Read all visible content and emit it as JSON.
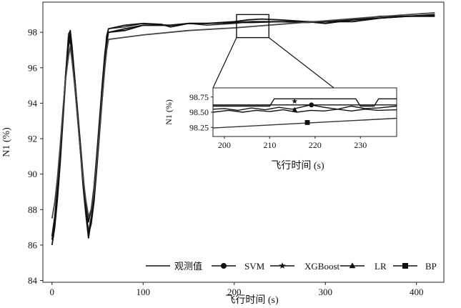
{
  "chart_data": [
    {
      "type": "line",
      "xlabel": "飞行时间 (s)",
      "ylabel": "N1 (%)",
      "xlim": [
        -10,
        430
      ],
      "ylim": [
        83.9,
        99.7
      ],
      "xticks": [
        0,
        100,
        200,
        300,
        400
      ],
      "yticks": [
        84,
        86,
        88,
        90,
        92,
        94,
        96,
        98
      ],
      "grid": false,
      "legend_position": "bottom",
      "series": [
        {
          "name": "观测值",
          "marker": "none",
          "color": "#222222",
          "points": [
            [
              0,
              86.0
            ],
            [
              3,
              87.2
            ],
            [
              6,
              88.8
            ],
            [
              9,
              90.8
            ],
            [
              12,
              93.2
            ],
            [
              15,
              95.8
            ],
            [
              18,
              97.9
            ],
            [
              20,
              98.1
            ],
            [
              22,
              96.8
            ],
            [
              25,
              95.2
            ],
            [
              28,
              93.4
            ],
            [
              31,
              91.6
            ],
            [
              34,
              89.8
            ],
            [
              37,
              88.2
            ],
            [
              40,
              86.8
            ],
            [
              43,
              87.6
            ],
            [
              46,
              88.8
            ],
            [
              49,
              90.6
            ],
            [
              52,
              92.6
            ],
            [
              55,
              94.6
            ],
            [
              58,
              96.6
            ],
            [
              60,
              97.6
            ],
            [
              62,
              98.2
            ],
            [
              80,
              98.3
            ],
            [
              100,
              98.5
            ],
            [
              130,
              98.4
            ],
            [
              150,
              98.5
            ],
            [
              170,
              98.4
            ],
            [
              200,
              98.5
            ],
            [
              220,
              98.6
            ],
            [
              250,
              98.6
            ],
            [
              280,
              98.6
            ],
            [
              300,
              98.6
            ],
            [
              330,
              98.6
            ],
            [
              360,
              98.8
            ],
            [
              390,
              98.9
            ],
            [
              420,
              99.0
            ]
          ]
        },
        {
          "name": "SVM",
          "marker": "circle",
          "color": "#111111",
          "points": [
            [
              0,
              86.3
            ],
            [
              3,
              87.4
            ],
            [
              6,
              89.0
            ],
            [
              9,
              91.0
            ],
            [
              12,
              93.4
            ],
            [
              15,
              95.6
            ],
            [
              18,
              97.2
            ],
            [
              20,
              97.9
            ],
            [
              22,
              97.0
            ],
            [
              25,
              95.4
            ],
            [
              28,
              93.6
            ],
            [
              31,
              91.8
            ],
            [
              34,
              90.0
            ],
            [
              37,
              88.4
            ],
            [
              40,
              87.3
            ],
            [
              43,
              88.0
            ],
            [
              46,
              89.2
            ],
            [
              49,
              91.0
            ],
            [
              52,
              93.0
            ],
            [
              55,
              95.0
            ],
            [
              58,
              96.8
            ],
            [
              60,
              97.6
            ],
            [
              62,
              98.0
            ],
            [
              80,
              98.2
            ],
            [
              100,
              98.4
            ],
            [
              130,
              98.4
            ],
            [
              150,
              98.5
            ],
            [
              170,
              98.5
            ],
            [
              200,
              98.55
            ],
            [
              220,
              98.6
            ],
            [
              250,
              98.6
            ],
            [
              280,
              98.55
            ],
            [
              300,
              98.6
            ],
            [
              330,
              98.7
            ],
            [
              360,
              98.8
            ],
            [
              390,
              98.9
            ],
            [
              420,
              98.9
            ]
          ]
        },
        {
          "name": "XGBoost",
          "marker": "star",
          "color": "#111111",
          "points": [
            [
              0,
              86.0
            ],
            [
              3,
              87.0
            ],
            [
              6,
              88.6
            ],
            [
              9,
              90.6
            ],
            [
              12,
              93.0
            ],
            [
              15,
              95.4
            ],
            [
              18,
              97.5
            ],
            [
              20,
              98.1
            ],
            [
              22,
              97.2
            ],
            [
              25,
              95.4
            ],
            [
              28,
              93.4
            ],
            [
              31,
              91.4
            ],
            [
              34,
              89.4
            ],
            [
              37,
              87.8
            ],
            [
              40,
              86.4
            ],
            [
              43,
              87.4
            ],
            [
              46,
              88.8
            ],
            [
              49,
              90.6
            ],
            [
              52,
              92.8
            ],
            [
              55,
              94.8
            ],
            [
              58,
              96.6
            ],
            [
              60,
              97.8
            ],
            [
              62,
              98.2
            ],
            [
              80,
              98.4
            ],
            [
              100,
              98.5
            ],
            [
              120,
              98.45
            ],
            [
              130,
              98.3
            ],
            [
              150,
              98.5
            ],
            [
              170,
              98.5
            ],
            [
              200,
              98.6
            ],
            [
              215,
              98.7
            ],
            [
              230,
              98.75
            ],
            [
              250,
              98.7
            ],
            [
              280,
              98.6
            ],
            [
              300,
              98.5
            ],
            [
              330,
              98.7
            ],
            [
              360,
              98.9
            ],
            [
              390,
              98.9
            ],
            [
              420,
              99.0
            ]
          ]
        },
        {
          "name": "LR",
          "marker": "triangle",
          "color": "#111111",
          "points": [
            [
              0,
              86.5
            ],
            [
              3,
              87.6
            ],
            [
              6,
              89.2
            ],
            [
              9,
              91.2
            ],
            [
              12,
              93.4
            ],
            [
              15,
              95.6
            ],
            [
              18,
              97.2
            ],
            [
              20,
              97.6
            ],
            [
              22,
              96.6
            ],
            [
              25,
              95.0
            ],
            [
              28,
              93.2
            ],
            [
              31,
              91.4
            ],
            [
              34,
              89.6
            ],
            [
              37,
              88.0
            ],
            [
              40,
              86.6
            ],
            [
              43,
              87.2
            ],
            [
              46,
              88.4
            ],
            [
              49,
              90.2
            ],
            [
              52,
              92.2
            ],
            [
              55,
              94.2
            ],
            [
              58,
              96.2
            ],
            [
              60,
              97.4
            ],
            [
              62,
              98.0
            ],
            [
              80,
              98.1
            ],
            [
              100,
              98.4
            ],
            [
              130,
              98.4
            ],
            [
              150,
              98.5
            ],
            [
              170,
              98.5
            ],
            [
              200,
              98.55
            ],
            [
              220,
              98.55
            ],
            [
              250,
              98.6
            ],
            [
              280,
              98.6
            ],
            [
              300,
              98.6
            ],
            [
              330,
              98.6
            ],
            [
              360,
              98.8
            ],
            [
              390,
              98.9
            ],
            [
              420,
              98.95
            ]
          ]
        },
        {
          "name": "BP",
          "marker": "square",
          "color": "#444444",
          "points": [
            [
              0,
              87.5
            ],
            [
              3,
              88.4
            ],
            [
              6,
              89.8
            ],
            [
              9,
              91.6
            ],
            [
              12,
              93.6
            ],
            [
              15,
              95.4
            ],
            [
              18,
              96.6
            ],
            [
              20,
              97.2
            ],
            [
              22,
              96.4
            ],
            [
              25,
              95.0
            ],
            [
              28,
              93.2
            ],
            [
              31,
              91.4
            ],
            [
              34,
              89.8
            ],
            [
              37,
              88.6
            ],
            [
              40,
              87.6
            ],
            [
              43,
              88.0
            ],
            [
              46,
              89.0
            ],
            [
              49,
              90.6
            ],
            [
              52,
              92.4
            ],
            [
              55,
              94.2
            ],
            [
              58,
              96.0
            ],
            [
              60,
              97.0
            ],
            [
              62,
              97.6
            ],
            [
              100,
              97.85
            ],
            [
              150,
              98.1
            ],
            [
              200,
              98.25
            ],
            [
              250,
              98.45
            ],
            [
              300,
              98.65
            ],
            [
              350,
              98.85
            ],
            [
              420,
              99.1
            ]
          ]
        }
      ]
    },
    {
      "type": "line",
      "role": "inset zoom of x 200–238 s",
      "xlabel": "飞行时间 (s)",
      "ylabel": "N1 (%)",
      "xlim": [
        197.5,
        238
      ],
      "ylim": [
        98.1,
        98.9
      ],
      "xticks": [
        200,
        210,
        220,
        230
      ],
      "yticks": [
        98.25,
        98.5,
        98.75
      ],
      "ytick_labels": [
        "98.25",
        "98.50",
        "98.75"
      ],
      "grid": false,
      "series": [
        {
          "name": "观测值",
          "points": [
            [
              197.5,
              98.62
            ],
            [
              238,
              98.62
            ]
          ]
        },
        {
          "name": "SVM",
          "points": [
            [
              197.5,
              98.55
            ],
            [
              200,
              98.56
            ],
            [
              203,
              98.53
            ],
            [
              206,
              98.57
            ],
            [
              209,
              98.54
            ],
            [
              212,
              98.58
            ],
            [
              215,
              98.55
            ],
            [
              219,
              98.62
            ],
            [
              222,
              98.58
            ],
            [
              225,
              98.55
            ],
            [
              228,
              98.6
            ],
            [
              231,
              98.56
            ],
            [
              234,
              98.57
            ],
            [
              238,
              98.6
            ]
          ]
        },
        {
          "name": "XGBoost",
          "points": [
            [
              197.5,
              98.6
            ],
            [
              210,
              98.6
            ],
            [
              211,
              98.72
            ],
            [
              229,
              98.72
            ],
            [
              230,
              98.6
            ],
            [
              233,
              98.6
            ],
            [
              234,
              98.72
            ],
            [
              238,
              98.72
            ]
          ]
        },
        {
          "name": "LR",
          "points": [
            [
              197.5,
              98.5
            ],
            [
              201,
              98.53
            ],
            [
              204,
              98.5
            ],
            [
              207,
              98.53
            ],
            [
              210,
              98.51
            ],
            [
              213,
              98.54
            ],
            [
              216,
              98.5
            ],
            [
              219,
              98.53
            ],
            [
              222,
              98.52
            ],
            [
              225,
              98.55
            ],
            [
              228,
              98.52
            ],
            [
              231,
              98.55
            ],
            [
              234,
              98.53
            ],
            [
              238,
              98.54
            ]
          ]
        },
        {
          "name": "BP",
          "points": [
            [
              197.5,
              98.24
            ],
            [
              238,
              98.4
            ]
          ]
        }
      ]
    }
  ]
}
